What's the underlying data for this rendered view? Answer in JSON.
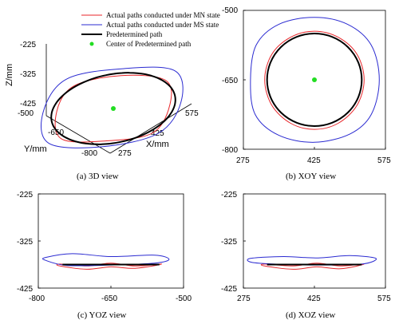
{
  "colors": {
    "mn": "#e8262a",
    "ms": "#2b2bd1",
    "pre": "#000000",
    "center": "#22dd22"
  },
  "legend": [
    {
      "label": "Actual paths conducted under MN state",
      "icon": "red-line-icon"
    },
    {
      "label": "Actual paths conducted under MS state",
      "icon": "blue-line-icon"
    },
    {
      "label": "Predetermined path",
      "icon": "black-line-icon"
    },
    {
      "label": "Center of Predetermined path",
      "icon": "green-dot-icon"
    }
  ],
  "chart_data": [
    {
      "type": "line",
      "caption": "(a)  3D view",
      "projection": "3d",
      "zlabel": "Z/mm",
      "ylabel": "Y/mm",
      "xlabel": "X/mm",
      "zticks": [
        "-225",
        "-325",
        "-425"
      ],
      "yticks": [
        "-500",
        "-650",
        "-800"
      ],
      "xticks": [
        "275",
        "425",
        "575"
      ],
      "center": {
        "x": 425,
        "y": -650,
        "z": -375
      },
      "series": [
        {
          "name": "Actual paths conducted under MN state",
          "points": [
            [
              425,
              -545,
              -378
            ],
            [
              490,
              -585,
              -374
            ],
            [
              530,
              -650,
              -378
            ],
            [
              490,
              -715,
              -374
            ],
            [
              425,
              -755,
              -378
            ],
            [
              360,
              -715,
              -372
            ],
            [
              320,
              -650,
              -378
            ],
            [
              360,
              -585,
              -374
            ]
          ]
        },
        {
          "name": "Actual paths conducted under MS state",
          "points": [
            [
              425,
              -530,
              -368
            ],
            [
              505,
              -575,
              -372
            ],
            [
              550,
              -650,
              -366
            ],
            [
              505,
              -725,
              -372
            ],
            [
              425,
              -775,
              -370
            ],
            [
              340,
              -725,
              -364
            ],
            [
              295,
              -650,
              -370
            ],
            [
              345,
              -575,
              -372
            ]
          ]
        },
        {
          "name": "Predetermined path",
          "shape": "circle",
          "cx": 425,
          "cy": -650,
          "z": -375,
          "r": 100
        }
      ]
    },
    {
      "type": "line",
      "caption": "(b)  XOY view",
      "xlim": [
        275,
        575
      ],
      "ylim": [
        -800,
        -500
      ],
      "xticks": [
        "275",
        "425",
        "575"
      ],
      "yticks": [
        "-500",
        "-650",
        "-800"
      ],
      "center": [
        425,
        -650
      ],
      "series": [
        {
          "name": "Actual paths conducted under MN state",
          "points": [
            [
              425,
              -545
            ],
            [
              475,
              -558
            ],
            [
              515,
              -595
            ],
            [
              530,
              -650
            ],
            [
              515,
              -705
            ],
            [
              475,
              -744
            ],
            [
              425,
              -757
            ],
            [
              375,
              -744
            ],
            [
              335,
              -705
            ],
            [
              320,
              -650
            ],
            [
              335,
              -595
            ],
            [
              375,
              -558
            ]
          ]
        },
        {
          "name": "Actual paths conducted under MS state",
          "points": [
            [
              425,
              -515
            ],
            [
              495,
              -530
            ],
            [
              545,
              -575
            ],
            [
              562,
              -650
            ],
            [
              545,
              -725
            ],
            [
              500,
              -767
            ],
            [
              425,
              -785
            ],
            [
              350,
              -770
            ],
            [
              300,
              -725
            ],
            [
              290,
              -650
            ],
            [
              302,
              -575
            ],
            [
              350,
              -530
            ]
          ]
        },
        {
          "name": "Predetermined path",
          "shape": "circle",
          "cx": 425,
          "cy": -650,
          "r": 100
        }
      ]
    },
    {
      "type": "line",
      "caption": "(c)  YOZ view",
      "xlim": [
        -800,
        -500
      ],
      "ylim": [
        -425,
        -225
      ],
      "xticks": [
        "-800",
        "-650",
        "-500"
      ],
      "yticks": [
        "-225",
        "-325",
        "-425"
      ],
      "series": [
        {
          "name": "Actual paths conducted under MN state",
          "points": [
            [
              -755,
              -374
            ],
            [
              -700,
              -378
            ],
            [
              -650,
              -372
            ],
            [
              -600,
              -378
            ],
            [
              -545,
              -374
            ],
            [
              -600,
              -383
            ],
            [
              -650,
              -380
            ],
            [
              -700,
              -385
            ],
            [
              -755,
              -378
            ]
          ]
        },
        {
          "name": "Actual paths conducted under MS state",
          "points": [
            [
              -785,
              -360
            ],
            [
              -730,
              -352
            ],
            [
              -650,
              -358
            ],
            [
              -560,
              -355
            ],
            [
              -530,
              -364
            ],
            [
              -560,
              -372
            ],
            [
              -650,
              -376
            ],
            [
              -740,
              -377
            ],
            [
              -785,
              -366
            ]
          ]
        },
        {
          "name": "Predetermined path",
          "points": [
            [
              -750,
              -375
            ],
            [
              -550,
              -375
            ]
          ]
        }
      ]
    },
    {
      "type": "line",
      "caption": "(d)  XOZ view",
      "xlim": [
        275,
        575
      ],
      "ylim": [
        -425,
        -225
      ],
      "xticks": [
        "275",
        "425",
        "575"
      ],
      "yticks": [
        "-225",
        "-325",
        "-425"
      ],
      "series": [
        {
          "name": "Actual paths conducted under MN state",
          "points": [
            [
              320,
              -374
            ],
            [
              380,
              -378
            ],
            [
              430,
              -372
            ],
            [
              480,
              -378
            ],
            [
              530,
              -374
            ],
            [
              480,
              -384
            ],
            [
              430,
              -380
            ],
            [
              380,
              -385
            ],
            [
              320,
              -378
            ]
          ]
        },
        {
          "name": "Actual paths conducted under MS state",
          "points": [
            [
              290,
              -362
            ],
            [
              360,
              -358
            ],
            [
              430,
              -361
            ],
            [
              500,
              -356
            ],
            [
              555,
              -362
            ],
            [
              525,
              -374
            ],
            [
              430,
              -376
            ],
            [
              340,
              -374
            ],
            [
              292,
              -370
            ]
          ]
        },
        {
          "name": "Predetermined path",
          "points": [
            [
              325,
              -375
            ],
            [
              525,
              -375
            ]
          ]
        }
      ]
    }
  ]
}
